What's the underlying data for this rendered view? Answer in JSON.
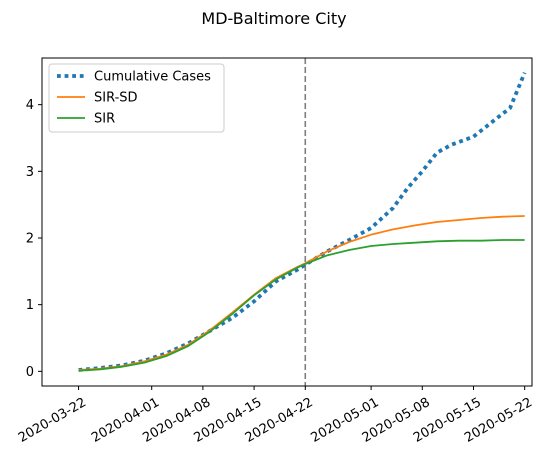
{
  "chart_data": {
    "type": "line",
    "title": "MD-Baltimore City",
    "xlabel": "",
    "ylabel": "",
    "x_axis_type": "date",
    "xlim": [
      "2020-03-17",
      "2020-05-23"
    ],
    "ylim": [
      -0.22,
      4.7
    ],
    "x_ticks": [
      "2020-03-22",
      "2020-04-01",
      "2020-04-08",
      "2020-04-15",
      "2020-04-22",
      "2020-05-01",
      "2020-05-08",
      "2020-05-15",
      "2020-05-22"
    ],
    "y_ticks": [
      0,
      1,
      2,
      3,
      4
    ],
    "vline": {
      "x": "2020-04-22",
      "style": "dashed",
      "color": "#7f7f7f"
    },
    "grid": false,
    "legend_position": "top-left",
    "series": [
      {
        "name": "Cumulative Cases",
        "color": "#1f77b4",
        "style": "dotted",
        "x": [
          "2020-03-22",
          "2020-03-25",
          "2020-03-28",
          "2020-03-31",
          "2020-04-03",
          "2020-04-06",
          "2020-04-09",
          "2020-04-12",
          "2020-04-15",
          "2020-04-18",
          "2020-04-21",
          "2020-04-22",
          "2020-04-25",
          "2020-04-28",
          "2020-05-01",
          "2020-05-04",
          "2020-05-06",
          "2020-05-08",
          "2020-05-10",
          "2020-05-12",
          "2020-05-15",
          "2020-05-18",
          "2020-05-20",
          "2020-05-22"
        ],
        "values": [
          0.02,
          0.05,
          0.09,
          0.16,
          0.27,
          0.42,
          0.61,
          0.8,
          1.05,
          1.35,
          1.53,
          1.6,
          1.8,
          1.97,
          2.15,
          2.45,
          2.75,
          3.0,
          3.28,
          3.4,
          3.52,
          3.78,
          3.95,
          4.48
        ]
      },
      {
        "name": "SIR-SD",
        "color": "#ff7f0e",
        "style": "solid",
        "x": [
          "2020-03-22",
          "2020-03-25",
          "2020-03-28",
          "2020-03-31",
          "2020-04-03",
          "2020-04-06",
          "2020-04-09",
          "2020-04-12",
          "2020-04-15",
          "2020-04-18",
          "2020-04-21",
          "2020-04-22",
          "2020-04-25",
          "2020-04-28",
          "2020-05-01",
          "2020-05-04",
          "2020-05-07",
          "2020-05-10",
          "2020-05-13",
          "2020-05-16",
          "2020-05-19",
          "2020-05-22"
        ],
        "values": [
          0.02,
          0.04,
          0.08,
          0.15,
          0.25,
          0.4,
          0.62,
          0.88,
          1.15,
          1.4,
          1.57,
          1.62,
          1.8,
          1.94,
          2.05,
          2.13,
          2.19,
          2.24,
          2.27,
          2.3,
          2.32,
          2.33
        ]
      },
      {
        "name": "SIR",
        "color": "#2ca02c",
        "style": "solid",
        "x": [
          "2020-03-22",
          "2020-03-25",
          "2020-03-28",
          "2020-03-31",
          "2020-04-03",
          "2020-04-06",
          "2020-04-09",
          "2020-04-12",
          "2020-04-15",
          "2020-04-18",
          "2020-04-21",
          "2020-04-22",
          "2020-04-25",
          "2020-04-28",
          "2020-05-01",
          "2020-05-04",
          "2020-05-07",
          "2020-05-10",
          "2020-05-13",
          "2020-05-16",
          "2020-05-19",
          "2020-05-22"
        ],
        "values": [
          0.01,
          0.03,
          0.07,
          0.13,
          0.23,
          0.38,
          0.6,
          0.86,
          1.14,
          1.38,
          1.56,
          1.61,
          1.74,
          1.82,
          1.88,
          1.91,
          1.93,
          1.95,
          1.96,
          1.96,
          1.97,
          1.97
        ]
      }
    ]
  }
}
